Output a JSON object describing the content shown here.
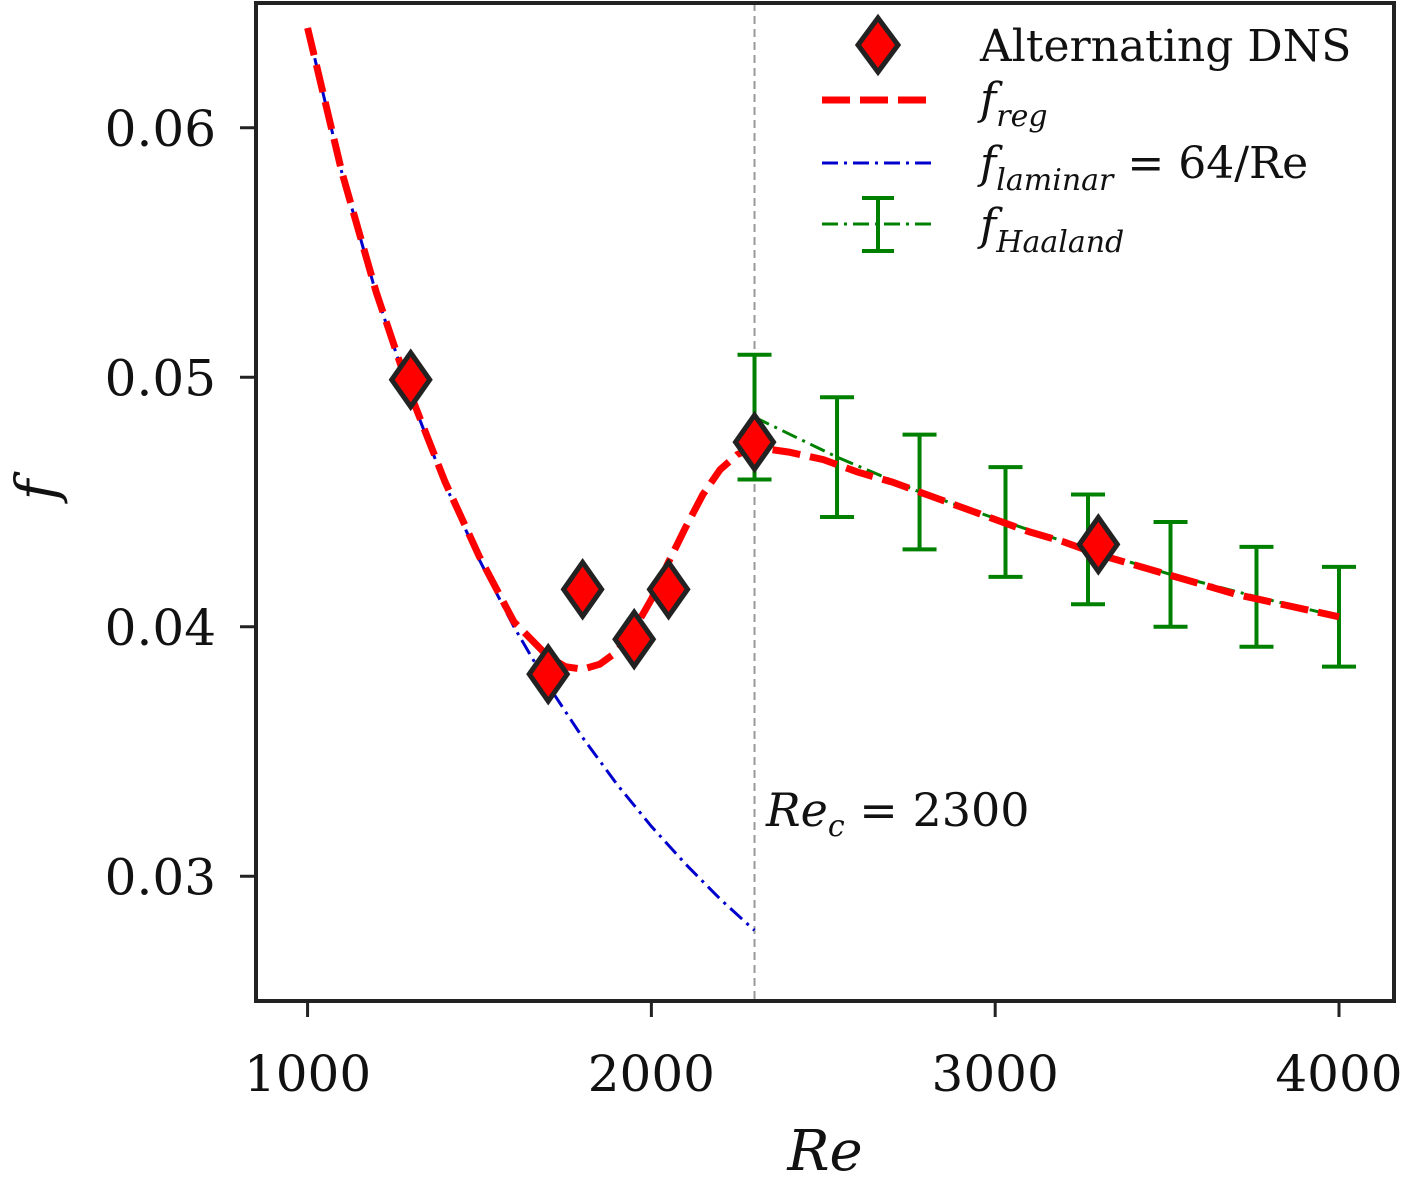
{
  "chart_data": {
    "type": "line",
    "title": "",
    "xlabel": "Re",
    "ylabel": "f",
    "xlim": [
      850,
      4160
    ],
    "ylim": [
      0.025,
      0.065
    ],
    "x_ticks": [
      1000,
      2000,
      3000,
      4000
    ],
    "x_tick_labels": [
      "1000",
      "2000",
      "3000",
      "4000"
    ],
    "y_ticks": [
      0.03,
      0.04,
      0.05,
      0.06
    ],
    "y_tick_labels": [
      "0.03",
      "0.04",
      "0.05",
      "0.06"
    ],
    "grid": false,
    "legend_position": "top-right",
    "legend": [
      {
        "label": "Alternating DNS",
        "marker": "diamond",
        "color": "#ff0000"
      },
      {
        "label_main": "f",
        "label_sub": "reg",
        "style": "dashed",
        "color": "#ff0000"
      },
      {
        "label_main": "f",
        "label_sub": "laminar",
        "label_suffix": " = 64/Re",
        "style": "dashdot",
        "color": "#0000cc"
      },
      {
        "label_main": "f",
        "label_sub": "Haaland",
        "style": "dashdot-errorbar",
        "color": "#008000"
      }
    ],
    "series": [
      {
        "kind": "markers",
        "marker": "diamond",
        "x": [
          1300,
          1700,
          1800,
          1950,
          2050,
          2300,
          3300
        ],
        "y": [
          0.0499,
          0.0381,
          0.0415,
          0.0395,
          0.0415,
          0.0474,
          0.0433
        ]
      },
      {
        "kind": "dashed-line",
        "x": [
          1000,
          1100,
          1200,
          1300,
          1400,
          1500,
          1600,
          1700,
          1750,
          1800,
          1850,
          1900,
          1950,
          2000,
          2050,
          2100,
          2150,
          2200,
          2250,
          2300,
          2350,
          2400,
          2500,
          2600,
          2700,
          2800,
          2900,
          3000,
          3100,
          3200,
          3300,
          3400,
          3500,
          3600,
          3700,
          3800,
          3900,
          4000
        ],
        "y": [
          0.064,
          0.0582,
          0.0534,
          0.0493,
          0.0458,
          0.0428,
          0.0402,
          0.0388,
          0.0384,
          0.0383,
          0.0385,
          0.039,
          0.0399,
          0.0411,
          0.0426,
          0.044,
          0.0453,
          0.0463,
          0.0469,
          0.0472,
          0.0471,
          0.047,
          0.0467,
          0.0462,
          0.0458,
          0.0453,
          0.0448,
          0.0443,
          0.0438,
          0.0434,
          0.0429,
          0.0425,
          0.0421,
          0.0417,
          0.0413,
          0.041,
          0.0407,
          0.0404
        ]
      },
      {
        "kind": "dashdot-line",
        "x": [
          1000,
          1100,
          1200,
          1300,
          1400,
          1500,
          1600,
          1700,
          1800,
          1900,
          2000,
          2100,
          2200,
          2300
        ],
        "y": [
          0.064,
          0.05818,
          0.05333,
          0.04923,
          0.04571,
          0.04267,
          0.04,
          0.03765,
          0.03556,
          0.03368,
          0.032,
          0.03048,
          0.02909,
          0.02783
        ]
      },
      {
        "kind": "dashdot-errorbar",
        "x": [
          2300,
          2540,
          2780,
          3030,
          3270,
          3510,
          3760,
          4000
        ],
        "y": [
          0.0484,
          0.0468,
          0.0454,
          0.0442,
          0.0431,
          0.0421,
          0.0412,
          0.0404
        ],
        "yerr": [
          0.0025,
          0.0024,
          0.0023,
          0.0022,
          0.0022,
          0.0021,
          0.002,
          0.002
        ]
      }
    ],
    "vline": {
      "x": 2300
    },
    "annotation": {
      "main": "Re",
      "sub": "c",
      "suffix": " = 2300",
      "x": 2300,
      "y": 0.0329
    }
  }
}
